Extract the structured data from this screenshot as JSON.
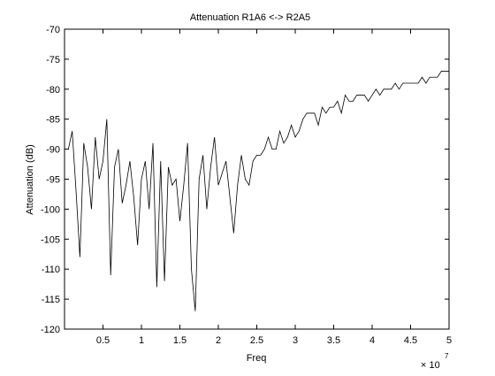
{
  "chart_data": {
    "type": "line",
    "title": "Attenuation R1A6 <-> R2A5",
    "xlabel": "Freq",
    "ylabel": "Attenuation (dB)",
    "x_multiplier_label": "× 10",
    "x_multiplier_exponent": "7",
    "xlim": [
      0,
      5
    ],
    "ylim": [
      -120,
      -70
    ],
    "x_tick_values": [
      0.5,
      1,
      1.5,
      2,
      2.5,
      3,
      3.5,
      4,
      4.5,
      5
    ],
    "x_tick_labels": [
      "0.5",
      "1",
      "1.5",
      "2",
      "2.5",
      "3",
      "3.5",
      "4",
      "4.5",
      "5"
    ],
    "y_tick_values": [
      -120,
      -115,
      -110,
      -105,
      -100,
      -95,
      -90,
      -85,
      -80,
      -75,
      -70
    ],
    "y_tick_labels": [
      "-120",
      "-115",
      "-110",
      "-105",
      "-100",
      "-95",
      "-90",
      "-85",
      "-80",
      "-75",
      "-70"
    ],
    "grid": false,
    "line_color": "#000000",
    "series": [
      {
        "x": [
          0.05,
          0.1,
          0.15,
          0.2,
          0.25,
          0.3,
          0.35,
          0.4,
          0.45,
          0.5,
          0.55,
          0.6,
          0.65,
          0.7,
          0.75,
          0.8,
          0.85,
          0.9,
          0.95,
          1.0,
          1.05,
          1.1,
          1.15,
          1.2,
          1.25,
          1.3,
          1.35,
          1.4,
          1.45,
          1.5,
          1.55,
          1.6,
          1.65,
          1.7,
          1.75,
          1.8,
          1.85,
          1.9,
          1.95,
          2.0,
          2.05,
          2.1,
          2.15,
          2.2,
          2.25,
          2.3,
          2.35,
          2.4,
          2.45,
          2.5,
          2.55,
          2.6,
          2.65,
          2.7,
          2.75,
          2.8,
          2.85,
          2.9,
          2.95,
          3.0,
          3.05,
          3.1,
          3.15,
          3.2,
          3.25,
          3.3,
          3.35,
          3.4,
          3.45,
          3.5,
          3.55,
          3.6,
          3.65,
          3.7,
          3.75,
          3.8,
          3.85,
          3.9,
          3.95,
          4.0,
          4.05,
          4.1,
          4.15,
          4.2,
          4.25,
          4.3,
          4.35,
          4.4,
          4.45,
          4.5,
          4.55,
          4.6,
          4.65,
          4.7,
          4.75,
          4.8,
          4.85,
          4.9,
          4.95,
          5.0
        ],
        "y": [
          -90,
          -87,
          -97,
          -108,
          -89,
          -93,
          -100,
          -88,
          -95,
          -92,
          -85,
          -111,
          -93,
          -90,
          -99,
          -96,
          -92,
          -98,
          -106,
          -95,
          -92,
          -100,
          -89,
          -113,
          -92,
          -112,
          -93,
          -96,
          -95,
          -102,
          -96,
          -89,
          -110,
          -117,
          -95,
          -91,
          -100,
          -93,
          -88,
          -96,
          -94,
          -92,
          -98,
          -104,
          -96,
          -91,
          -95,
          -96,
          -92,
          -91,
          -91,
          -90,
          -88,
          -90,
          -90,
          -87,
          -89,
          -88,
          -86,
          -88,
          -87,
          -85,
          -84,
          -84,
          -84,
          -86,
          -83,
          -84,
          -83,
          -83,
          -82,
          -84,
          -81,
          -82,
          -82,
          -81,
          -81,
          -81,
          -82,
          -81,
          -80,
          -81,
          -80,
          -80,
          -80,
          -79,
          -80,
          -79,
          -79,
          -79,
          -79,
          -79,
          -78,
          -79,
          -78,
          -78,
          -78,
          -77,
          -77,
          -77
        ]
      }
    ]
  }
}
